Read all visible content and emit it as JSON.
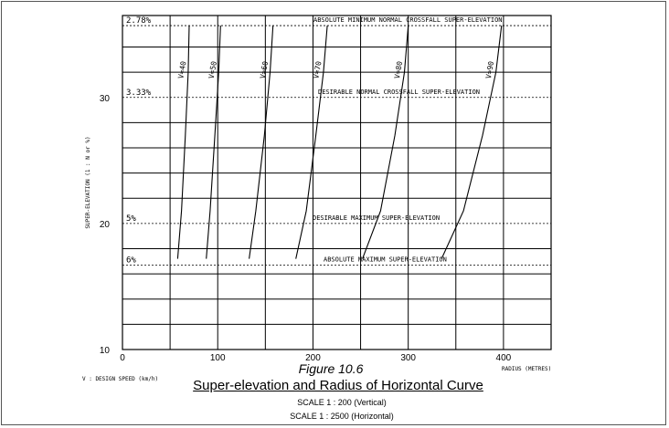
{
  "chart_data": {
    "type": "line",
    "xlabel": "RADIUS (METRES)",
    "ylabel": "SUPER-ELEVATION (1 : N or %)",
    "xlim": [
      0,
      450
    ],
    "ylim": [
      10,
      36.5
    ],
    "x_ticks": [
      "0",
      "100",
      "200",
      "300",
      "400"
    ],
    "y_ticks": [
      "10",
      "20",
      "30"
    ],
    "legend_note": "V : DESIGN SPEED (km/h)",
    "series": [
      {
        "name": "V=40",
        "points": [
          [
            58,
            17.2
          ],
          [
            62,
            21
          ],
          [
            66,
            27
          ],
          [
            69,
            32
          ],
          [
            70,
            35.7
          ]
        ]
      },
      {
        "name": "V=50",
        "points": [
          [
            88,
            17.2
          ],
          [
            92,
            21
          ],
          [
            97,
            27
          ],
          [
            101,
            32
          ],
          [
            103,
            35.7
          ]
        ]
      },
      {
        "name": "V=60",
        "points": [
          [
            133,
            17.2
          ],
          [
            140,
            21
          ],
          [
            149,
            27
          ],
          [
            155,
            32
          ],
          [
            158,
            35.7
          ]
        ]
      },
      {
        "name": "V=70",
        "points": [
          [
            182,
            17.2
          ],
          [
            193,
            21
          ],
          [
            203,
            27
          ],
          [
            211,
            32
          ],
          [
            215,
            35.7
          ]
        ]
      },
      {
        "name": "V=80",
        "points": [
          [
            252,
            17.2
          ],
          [
            271,
            21
          ],
          [
            286,
            27
          ],
          [
            296,
            32
          ],
          [
            300,
            35.7
          ]
        ]
      },
      {
        "name": "V=90",
        "points": [
          [
            335,
            17.2
          ],
          [
            358,
            21
          ],
          [
            378,
            27
          ],
          [
            392,
            32
          ],
          [
            398,
            35.7
          ]
        ]
      }
    ],
    "reference_lines": [
      {
        "y": 35.7,
        "pct": "2.78%",
        "label": "ABSOLUTE MINIMUM NORMAL CROSSFALL SUPER-ELEVATION"
      },
      {
        "y": 30.0,
        "pct": "3.33%",
        "label": "DESIRABLE NORMAL CROSSFALL SUPER-ELEVATION"
      },
      {
        "y": 20.0,
        "pct": "5%",
        "label": "DESIRABLE MAXIMUM SUPER-ELEVATION"
      },
      {
        "y": 16.7,
        "pct": "6%",
        "label": "ABSOLUTE MAXIMUM SUPER-ELEVATION"
      }
    ]
  },
  "figure": {
    "number": "Figure 10.6",
    "title": "Super-elevation and Radius of Horizontal Curve",
    "scale_vertical": "SCALE  1 : 200 (Vertical)",
    "scale_horizontal": "SCALE  1 : 2500 (Horizontal)"
  }
}
